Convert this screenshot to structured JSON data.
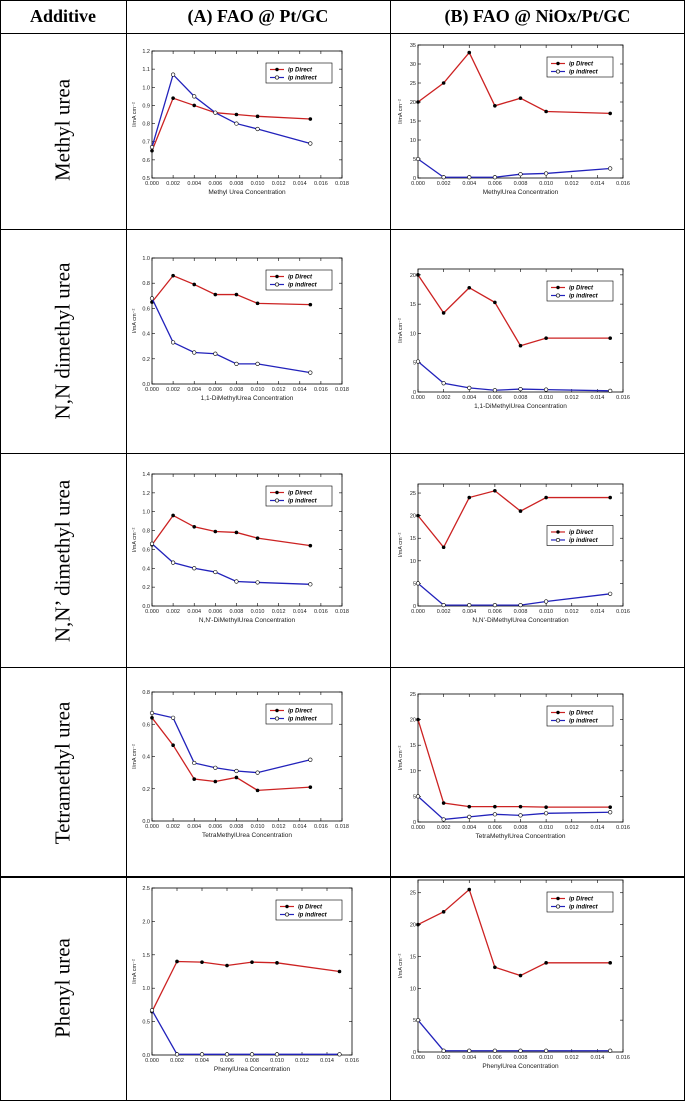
{
  "table": {
    "headers": [
      "Additive",
      "(A) FAO @ Pt/GC",
      "(B) FAO @ NiOx/Pt/GC"
    ],
    "rows": [
      "Methyl urea",
      "N,N dimethyl urea",
      "N,N’ dimethyl urea",
      "Tetramethyl urea",
      "Phenyl urea"
    ]
  },
  "colors": {
    "direct": "#cc2222",
    "indirect": "#2222bb"
  },
  "legend_labels": [
    "ip Direct",
    "ip indirect"
  ],
  "ylabel": "I/mA cm⁻²",
  "chart_data": [
    {
      "type": "line",
      "row": 0,
      "column": "A",
      "xlabel": "Methyl Urea Concentration",
      "ylabel": "I/mA cm⁻²",
      "xlim": [
        0,
        0.018
      ],
      "ylim": [
        0.5,
        1.2
      ],
      "xticks": [
        0,
        0.002,
        0.004,
        0.006,
        0.008,
        0.01,
        0.012,
        0.014,
        0.016,
        0.018
      ],
      "yticks": [
        0.5,
        0.6,
        0.7,
        0.8,
        0.9,
        1.0,
        1.1,
        1.2
      ],
      "x": [
        0,
        0.002,
        0.004,
        0.006,
        0.008,
        0.01,
        0.015
      ],
      "series": [
        {
          "name": "ip Direct",
          "values": [
            0.65,
            0.94,
            0.9,
            0.86,
            0.85,
            0.84,
            0.825
          ]
        },
        {
          "name": "ip indirect",
          "values": [
            0.67,
            1.07,
            0.95,
            0.86,
            0.8,
            0.77,
            0.69
          ]
        }
      ],
      "legend": "top-right"
    },
    {
      "type": "line",
      "row": 0,
      "column": "B",
      "xlabel": "MethylUrea Concentration",
      "ylabel": "I/mA cm⁻²",
      "xlim": [
        0,
        0.016
      ],
      "ylim": [
        0,
        35
      ],
      "xticks": [
        0,
        0.002,
        0.004,
        0.006,
        0.008,
        0.01,
        0.012,
        0.014,
        0.016
      ],
      "yticks": [
        0,
        5,
        10,
        15,
        20,
        25,
        30,
        35
      ],
      "x": [
        0,
        0.002,
        0.004,
        0.006,
        0.008,
        0.01,
        0.015
      ],
      "series": [
        {
          "name": "ip Direct",
          "values": [
            20,
            25,
            33,
            19,
            21,
            17.5,
            17
          ]
        },
        {
          "name": "ip indirect",
          "values": [
            5,
            0.2,
            0.2,
            0.2,
            1,
            1.2,
            2.5
          ]
        }
      ],
      "legend": "top-right"
    },
    {
      "type": "line",
      "row": 1,
      "column": "A",
      "xlabel": "1,1-DiMethylUrea Concentration",
      "ylabel": "I/mA cm⁻²",
      "xlim": [
        0,
        0.018
      ],
      "ylim": [
        0,
        1.0
      ],
      "xticks": [
        0,
        0.002,
        0.004,
        0.006,
        0.008,
        0.01,
        0.012,
        0.014,
        0.016,
        0.018
      ],
      "yticks": [
        0,
        0.2,
        0.4,
        0.6,
        0.8,
        1.0
      ],
      "x": [
        0,
        0.002,
        0.004,
        0.006,
        0.008,
        0.01,
        0.015
      ],
      "series": [
        {
          "name": "ip Direct",
          "values": [
            0.65,
            0.86,
            0.79,
            0.71,
            0.71,
            0.64,
            0.63
          ]
        },
        {
          "name": "ip indirect",
          "values": [
            0.68,
            0.33,
            0.25,
            0.24,
            0.16,
            0.16,
            0.09
          ]
        }
      ],
      "legend": "top-right"
    },
    {
      "type": "line",
      "row": 1,
      "column": "B",
      "xlabel": "1,1-DiMethylUrea Concentration",
      "ylabel": "I/mA cm⁻²",
      "xlim": [
        0,
        0.016
      ],
      "ylim": [
        0,
        21
      ],
      "xticks": [
        0,
        0.002,
        0.004,
        0.006,
        0.008,
        0.01,
        0.012,
        0.014,
        0.016
      ],
      "yticks": [
        0,
        5,
        10,
        15,
        20
      ],
      "x": [
        0,
        0.002,
        0.004,
        0.006,
        0.008,
        0.01,
        0.015
      ],
      "series": [
        {
          "name": "ip Direct",
          "values": [
            20,
            13.5,
            17.8,
            15.3,
            7.9,
            9.2,
            9.2
          ]
        },
        {
          "name": "ip indirect",
          "values": [
            5.2,
            1.5,
            0.7,
            0.3,
            0.5,
            0.4,
            0.2
          ]
        }
      ],
      "legend": "top-right"
    },
    {
      "type": "line",
      "row": 2,
      "column": "A",
      "xlabel": "N,N'-DiMethylUrea Concentration",
      "ylabel": "I/mA cm⁻²",
      "xlim": [
        0,
        0.018
      ],
      "ylim": [
        0,
        1.4
      ],
      "xticks": [
        0,
        0.002,
        0.004,
        0.006,
        0.008,
        0.01,
        0.012,
        0.014,
        0.016,
        0.018
      ],
      "yticks": [
        0,
        0.2,
        0.4,
        0.6,
        0.8,
        1.0,
        1.2,
        1.4
      ],
      "x": [
        0,
        0.002,
        0.004,
        0.006,
        0.008,
        0.01,
        0.015
      ],
      "series": [
        {
          "name": "ip Direct",
          "values": [
            0.65,
            0.96,
            0.84,
            0.79,
            0.78,
            0.72,
            0.64
          ]
        },
        {
          "name": "ip indirect",
          "values": [
            0.66,
            0.46,
            0.4,
            0.36,
            0.26,
            0.25,
            0.23
          ]
        }
      ],
      "legend": "top-right"
    },
    {
      "type": "line",
      "row": 2,
      "column": "B",
      "xlabel": "N,N'-DiMethylUrea Concentration",
      "ylabel": "I/mA cm⁻²",
      "xlim": [
        0,
        0.016
      ],
      "ylim": [
        0,
        27
      ],
      "xticks": [
        0,
        0.002,
        0.004,
        0.006,
        0.008,
        0.01,
        0.012,
        0.014,
        0.016
      ],
      "yticks": [
        0,
        5,
        10,
        15,
        20,
        25
      ],
      "x": [
        0,
        0.002,
        0.004,
        0.006,
        0.008,
        0.01,
        0.015
      ],
      "series": [
        {
          "name": "ip Direct",
          "values": [
            20,
            13,
            24,
            25.5,
            21,
            24,
            24
          ]
        },
        {
          "name": "ip indirect",
          "values": [
            5,
            0.2,
            0.2,
            0.2,
            0.2,
            1,
            2.7
          ]
        }
      ],
      "legend": "center-right"
    },
    {
      "type": "line",
      "row": 3,
      "column": "A",
      "xlabel": "TetraMethylUrea Concentration",
      "ylabel": "I/mA cm⁻²",
      "xlim": [
        0,
        0.018
      ],
      "ylim": [
        0,
        0.8
      ],
      "xticks": [
        0,
        0.002,
        0.004,
        0.006,
        0.008,
        0.01,
        0.012,
        0.014,
        0.016,
        0.018
      ],
      "yticks": [
        0,
        0.2,
        0.4,
        0.6,
        0.8
      ],
      "x": [
        0,
        0.002,
        0.004,
        0.006,
        0.008,
        0.01,
        0.015
      ],
      "series": [
        {
          "name": "ip Direct",
          "values": [
            0.64,
            0.47,
            0.26,
            0.245,
            0.27,
            0.19,
            0.21
          ]
        },
        {
          "name": "ip indirect",
          "values": [
            0.67,
            0.64,
            0.36,
            0.33,
            0.31,
            0.3,
            0.38
          ]
        }
      ],
      "legend": "top-right"
    },
    {
      "type": "line",
      "row": 3,
      "column": "B",
      "xlabel": "TetraMethylUrea Concentration",
      "ylabel": "I/mA cm⁻²",
      "xlim": [
        0,
        0.016
      ],
      "ylim": [
        0,
        25
      ],
      "xticks": [
        0,
        0.002,
        0.004,
        0.006,
        0.008,
        0.01,
        0.012,
        0.014,
        0.016
      ],
      "yticks": [
        0,
        5,
        10,
        15,
        20,
        25
      ],
      "x": [
        0,
        0.002,
        0.004,
        0.006,
        0.008,
        0.01,
        0.015
      ],
      "series": [
        {
          "name": "ip Direct",
          "values": [
            20,
            3.7,
            3,
            3,
            3,
            2.9,
            2.9
          ]
        },
        {
          "name": "ip indirect",
          "values": [
            5,
            0.5,
            1,
            1.5,
            1.3,
            1.7,
            1.9
          ]
        }
      ],
      "legend": "top-right"
    },
    {
      "type": "line",
      "row": 4,
      "column": "A",
      "xlabel": "PhenylUrea Concentration",
      "ylabel": "I/mA cm⁻²",
      "xlim": [
        0,
        0.016
      ],
      "ylim": [
        0,
        2.5
      ],
      "xticks": [
        0,
        0.002,
        0.004,
        0.006,
        0.008,
        0.01,
        0.012,
        0.014,
        0.016
      ],
      "yticks": [
        0,
        0.5,
        1.0,
        1.5,
        2.0,
        2.5
      ],
      "x": [
        0,
        0.002,
        0.004,
        0.006,
        0.008,
        0.01,
        0.015
      ],
      "series": [
        {
          "name": "ip Direct",
          "values": [
            0.65,
            1.4,
            1.39,
            1.34,
            1.39,
            1.38,
            1.25
          ]
        },
        {
          "name": "ip indirect",
          "values": [
            0.67,
            0.01,
            0.01,
            0.01,
            0.01,
            0.01,
            0.01
          ]
        }
      ],
      "legend": "top-right"
    },
    {
      "type": "line",
      "row": 4,
      "column": "B",
      "xlabel": "PhenylUrea Concentration",
      "ylabel": "I/mA cm⁻²",
      "xlim": [
        0,
        0.016
      ],
      "ylim": [
        0,
        27
      ],
      "xticks": [
        0,
        0.002,
        0.004,
        0.006,
        0.008,
        0.01,
        0.012,
        0.014,
        0.016
      ],
      "yticks": [
        0,
        5,
        10,
        15,
        20,
        25
      ],
      "x": [
        0,
        0.002,
        0.004,
        0.006,
        0.008,
        0.01,
        0.015
      ],
      "series": [
        {
          "name": "ip Direct",
          "values": [
            20,
            22,
            25.5,
            13.3,
            12,
            14,
            14
          ]
        },
        {
          "name": "ip indirect",
          "values": [
            5,
            0.2,
            0.2,
            0.2,
            0.2,
            0.2,
            0.2
          ]
        }
      ],
      "legend": "top-right"
    }
  ]
}
